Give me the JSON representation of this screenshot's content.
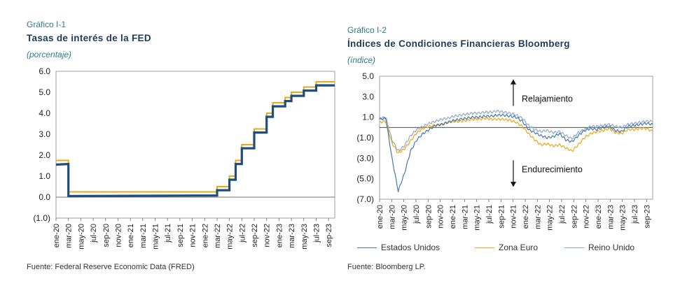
{
  "left": {
    "label": "Gráfico I-1",
    "title": "Tasas de interés de la FED",
    "unit": "(porcentaje)",
    "source": "Fuente: Federal Reserve Economic Data (FRED)"
  },
  "right": {
    "label": "Gráfico I-2",
    "title": "Índices de Condiciones Financieras Bloomberg",
    "unit": "(índice)",
    "source": "Fuente: Bloomberg LP.",
    "annot_up": "Relajamiento",
    "annot_down": "Endurecimiento"
  },
  "chart_data": [
    {
      "type": "line",
      "title": "Tasas de interés de la FED",
      "ylim": [
        -1.0,
        6.0
      ],
      "y_ticks": [
        "6.0",
        "5.0",
        "4.0",
        "3.0",
        "2.0",
        "1.0",
        "0.0",
        "(1.0)"
      ],
      "x_ticks": [
        "ene-20",
        "mar-20",
        "may-20",
        "jul-20",
        "sep-20",
        "nov-20",
        "ene-21",
        "mar-21",
        "may-21",
        "jul-21",
        "sep-21",
        "nov-21",
        "ene-22",
        "mar-22",
        "may-22",
        "jul-22",
        "sep-22",
        "nov-22",
        "ene-23",
        "mar-23",
        "may-23",
        "jul-23",
        "sep-23"
      ],
      "series": [
        {
          "name": "",
          "color": "#e6a91a",
          "kind": "upper bound",
          "points": [
            [
              "ene-20",
              1.75
            ],
            [
              "mar-20",
              1.75
            ],
            [
              "mar-20",
              1.25
            ],
            [
              "mar-20",
              0.25
            ],
            [
              "mar-22",
              0.25
            ],
            [
              "mar-22",
              0.5
            ],
            [
              "may-22",
              0.5
            ],
            [
              "may-22",
              1.0
            ],
            [
              "jun-22",
              1.0
            ],
            [
              "jun-22",
              1.75
            ],
            [
              "jul-22",
              1.75
            ],
            [
              "jul-22",
              2.5
            ],
            [
              "sep-22",
              2.5
            ],
            [
              "sep-22",
              3.25
            ],
            [
              "nov-22",
              3.25
            ],
            [
              "nov-22",
              4.0
            ],
            [
              "dic-22",
              4.0
            ],
            [
              "dic-22",
              4.5
            ],
            [
              "feb-23",
              4.5
            ],
            [
              "feb-23",
              4.75
            ],
            [
              "mar-23",
              4.75
            ],
            [
              "mar-23",
              5.0
            ],
            [
              "may-23",
              5.0
            ],
            [
              "may-23",
              5.25
            ],
            [
              "jul-23",
              5.25
            ],
            [
              "jul-23",
              5.5
            ],
            [
              "oct-23",
              5.5
            ]
          ]
        },
        {
          "name": "",
          "color": "#1f4e79",
          "kind": "effective rate",
          "points": [
            [
              "ene-20",
              1.55
            ],
            [
              "mar-20",
              1.58
            ],
            [
              "mar-20",
              1.1
            ],
            [
              "mar-20",
              0.05
            ],
            [
              "mar-22",
              0.08
            ],
            [
              "mar-22",
              0.33
            ],
            [
              "may-22",
              0.33
            ],
            [
              "may-22",
              0.83
            ],
            [
              "jun-22",
              0.83
            ],
            [
              "jun-22",
              1.58
            ],
            [
              "jul-22",
              1.58
            ],
            [
              "jul-22",
              2.33
            ],
            [
              "sep-22",
              2.33
            ],
            [
              "sep-22",
              3.08
            ],
            [
              "nov-22",
              3.08
            ],
            [
              "nov-22",
              3.83
            ],
            [
              "dic-22",
              3.83
            ],
            [
              "dic-22",
              4.33
            ],
            [
              "feb-23",
              4.33
            ],
            [
              "feb-23",
              4.58
            ],
            [
              "mar-23",
              4.58
            ],
            [
              "mar-23",
              4.83
            ],
            [
              "may-23",
              4.83
            ],
            [
              "may-23",
              5.08
            ],
            [
              "jul-23",
              5.08
            ],
            [
              "jul-23",
              5.33
            ],
            [
              "oct-23",
              5.33
            ]
          ]
        }
      ]
    },
    {
      "type": "line",
      "title": "Índices de Condiciones Financieras Bloomberg",
      "ylim": [
        -7.0,
        5.0
      ],
      "y_ticks": [
        "5.0",
        "3.0",
        "1.0",
        "(1.0)",
        "(3.0)",
        "(5.0)",
        "(7.0)"
      ],
      "x_ticks": [
        "ene-20",
        "mar-20",
        "may-20",
        "jul-20",
        "sep-20",
        "nov-20",
        "ene-21",
        "mar-21",
        "may-21",
        "jul-21",
        "sep-21",
        "nov-21",
        "ene-22",
        "mar-22",
        "may-22",
        "jul-22",
        "sep-22",
        "nov-22",
        "ene-23",
        "mar-23",
        "may-23",
        "jul-23",
        "sep-23"
      ],
      "series": [
        {
          "name": "Estados Unidos",
          "color": "#4a78a8",
          "values": [
            0.8,
            0.9,
            -3.0,
            -6.2,
            -4.5,
            -2.3,
            -1.2,
            -0.6,
            -0.2,
            0.2,
            0.3,
            0.5,
            0.7,
            0.8,
            0.9,
            1.0,
            1.0,
            1.1,
            1.1,
            1.2,
            1.2,
            1.1,
            1.0,
            0.6,
            -0.2,
            -0.5,
            -0.8,
            -1.0,
            -0.9,
            -0.6,
            -1.2,
            -1.4,
            -0.8,
            -0.3,
            -0.1,
            -0.2,
            0.0,
            0.1,
            -0.3,
            -0.4,
            0.1,
            0.2,
            0.3,
            0.4,
            0.3
          ]
        },
        {
          "name": "Zona Euro",
          "color": "#e6a91a",
          "values": [
            0.5,
            0.6,
            -1.5,
            -2.5,
            -2.1,
            -1.3,
            -0.5,
            -0.1,
            0.1,
            0.2,
            0.3,
            0.5,
            0.6,
            0.6,
            0.7,
            0.8,
            0.8,
            0.9,
            0.8,
            0.8,
            0.8,
            0.7,
            0.5,
            0.1,
            -0.6,
            -1.2,
            -1.7,
            -1.6,
            -1.8,
            -1.7,
            -2.0,
            -2.3,
            -1.7,
            -1.0,
            -0.6,
            -0.4,
            -0.3,
            -0.1,
            -0.5,
            -0.6,
            -0.2,
            -0.2,
            -0.1,
            -0.1,
            -0.4
          ]
        },
        {
          "name": "Reino Unido",
          "color": "#8fa8c8",
          "values": [
            0.9,
            1.0,
            -1.2,
            -2.3,
            -1.8,
            -0.8,
            -0.2,
            0.1,
            0.4,
            0.6,
            0.8,
            0.9,
            1.1,
            1.2,
            1.3,
            1.4,
            1.4,
            1.5,
            1.5,
            1.6,
            1.5,
            1.4,
            1.2,
            0.9,
            0.2,
            -0.2,
            -0.4,
            -0.3,
            -0.5,
            -0.4,
            -0.8,
            -1.1,
            -0.5,
            -0.2,
            0.1,
            0.1,
            0.2,
            0.3,
            0.1,
            0.0,
            0.3,
            0.4,
            0.5,
            0.6,
            0.6
          ]
        }
      ],
      "legend_position": "bottom"
    }
  ]
}
